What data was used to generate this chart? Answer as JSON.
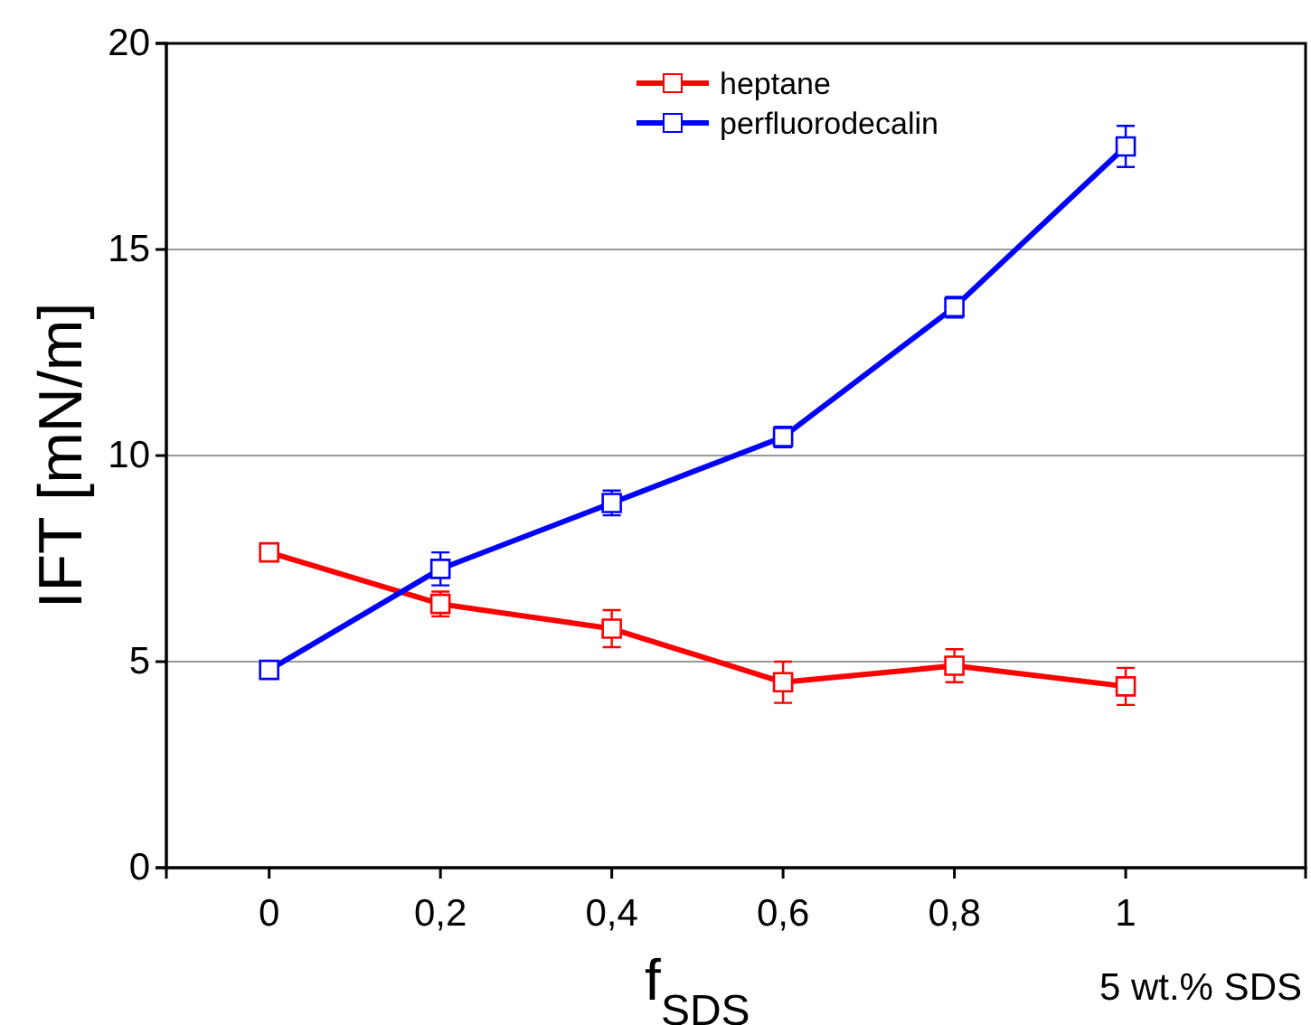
{
  "chart_data": {
    "type": "line",
    "xlabel": "f$_{SDS}$",
    "ylabel": "IFT [mN/m]",
    "x": [
      0,
      0.2,
      0.4,
      0.6,
      0.8,
      1
    ],
    "xlim": [
      -0.12,
      1.21
    ],
    "xticks": [
      0,
      {
        "value": 0.2,
        "label": "0,2"
      },
      {
        "value": 0.4,
        "label": "0,4"
      },
      {
        "value": 0.6,
        "label": "0,6"
      },
      {
        "value": 0.8,
        "label": "0,8"
      },
      1
    ],
    "ylim": [
      0,
      20
    ],
    "yticks": [
      0,
      5,
      10,
      15,
      20
    ],
    "series": [
      {
        "name": "heptane",
        "color": "#ff0000",
        "values": [
          7.65,
          6.4,
          5.8,
          4.5,
          4.9,
          4.4
        ],
        "errors": [
          0.1,
          0.3,
          0.45,
          0.5,
          0.4,
          0.45
        ]
      },
      {
        "name": "perfluorodecalin",
        "color": "#0000ff",
        "values": [
          4.8,
          7.25,
          8.85,
          10.45,
          13.6,
          17.5
        ],
        "errors": [
          0.1,
          0.4,
          0.3,
          0.25,
          0.25,
          0.5
        ]
      }
    ],
    "annotations": [
      "5 wt.% SDS"
    ],
    "grid": "y",
    "legend": "top",
    "marker": "square",
    "line_style": "solid"
  }
}
